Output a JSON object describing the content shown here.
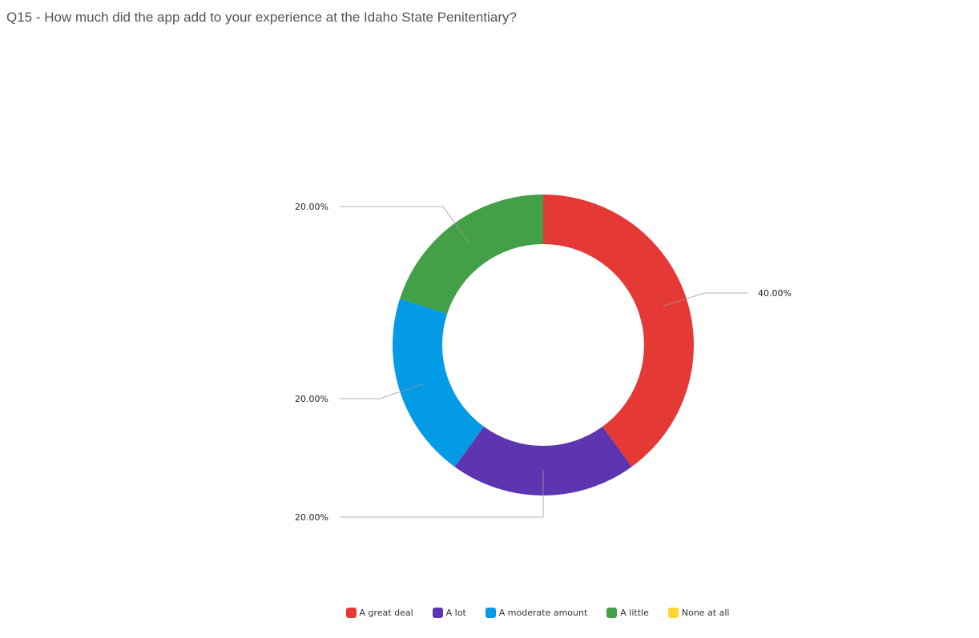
{
  "page": {
    "title": "Q15 - How much did the app add to your experience at the Idaho State Penitentiary?"
  },
  "chart_data": {
    "type": "pie",
    "donut": true,
    "title": "Q15 - How much did the app add to your experience at the Idaho State Penitentiary?",
    "categories": [
      "A great deal",
      "A lot",
      "A moderate amount",
      "A little",
      "None at all"
    ],
    "values": [
      40,
      20,
      20,
      20,
      0
    ],
    "labels": [
      "40.00%",
      "20.00%",
      "20.00%",
      "20.00%",
      ""
    ],
    "colors": [
      "#e53935",
      "#5e35b1",
      "#039be5",
      "#43a047",
      "#fdd835"
    ],
    "legend_position": "bottom"
  }
}
